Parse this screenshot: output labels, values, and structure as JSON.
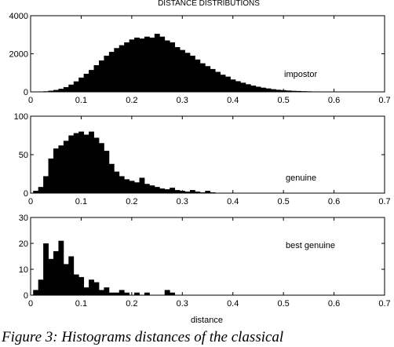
{
  "figure": {
    "title": "DISTANCE DISTRIBUTIONS",
    "caption": "Figure 3: Histograms distances of the classical"
  },
  "chart_data": [
    {
      "type": "bar",
      "title": "DISTANCE DISTRIBUTIONS",
      "xlabel": "",
      "ylabel": "",
      "annotation": "impostor",
      "xlim": [
        0,
        0.7
      ],
      "ylim": [
        0,
        4000
      ],
      "xticks": [
        "0",
        "0.1",
        "0.2",
        "0.3",
        "0.4",
        "0.5",
        "0.6",
        "0.7"
      ],
      "yticks": [
        "0",
        "2000",
        "4000"
      ],
      "bin_width": 0.01,
      "x": [
        0.01,
        0.02,
        0.03,
        0.04,
        0.05,
        0.06,
        0.07,
        0.08,
        0.09,
        0.1,
        0.11,
        0.12,
        0.13,
        0.14,
        0.15,
        0.16,
        0.17,
        0.18,
        0.19,
        0.2,
        0.21,
        0.22,
        0.23,
        0.24,
        0.25,
        0.26,
        0.27,
        0.28,
        0.29,
        0.3,
        0.31,
        0.32,
        0.33,
        0.34,
        0.35,
        0.36,
        0.37,
        0.38,
        0.39,
        0.4,
        0.41,
        0.42,
        0.43,
        0.44,
        0.45,
        0.46,
        0.47,
        0.48,
        0.49,
        0.5,
        0.51,
        0.52,
        0.53,
        0.54,
        0.55,
        0.56,
        0.57,
        0.58,
        0.59,
        0.6,
        0.61,
        0.62
      ],
      "values": [
        5,
        15,
        30,
        60,
        100,
        160,
        250,
        380,
        550,
        750,
        950,
        1150,
        1400,
        1650,
        1900,
        2100,
        2300,
        2450,
        2600,
        2750,
        2850,
        2800,
        2900,
        2850,
        3050,
        2900,
        2700,
        2600,
        2350,
        2200,
        2050,
        1900,
        1700,
        1500,
        1350,
        1200,
        1050,
        900,
        800,
        650,
        560,
        480,
        400,
        330,
        270,
        220,
        180,
        140,
        110,
        90,
        70,
        55,
        45,
        35,
        28,
        22,
        18,
        14,
        10,
        8,
        5,
        3
      ],
      "grid": false,
      "legend": "none"
    },
    {
      "type": "bar",
      "title": "",
      "xlabel": "",
      "ylabel": "",
      "annotation": "genuine",
      "xlim": [
        0,
        0.7
      ],
      "ylim": [
        0,
        100
      ],
      "xticks": [
        "0",
        "0.1",
        "0.2",
        "0.3",
        "0.4",
        "0.5",
        "0.6",
        "0.7"
      ],
      "yticks": [
        "0",
        "50",
        "100"
      ],
      "bin_width": 0.01,
      "x": [
        0.01,
        0.02,
        0.03,
        0.04,
        0.05,
        0.06,
        0.07,
        0.08,
        0.09,
        0.1,
        0.11,
        0.12,
        0.13,
        0.14,
        0.15,
        0.16,
        0.17,
        0.18,
        0.19,
        0.2,
        0.21,
        0.22,
        0.23,
        0.24,
        0.25,
        0.26,
        0.27,
        0.28,
        0.29,
        0.3,
        0.31,
        0.32,
        0.33,
        0.34,
        0.35,
        0.36
      ],
      "values": [
        3,
        8,
        22,
        45,
        58,
        62,
        68,
        75,
        78,
        80,
        76,
        80,
        72,
        65,
        55,
        38,
        28,
        22,
        18,
        16,
        14,
        20,
        12,
        10,
        8,
        6,
        5,
        7,
        4,
        3,
        2,
        4,
        2,
        1,
        3,
        1
      ],
      "grid": false,
      "legend": "none"
    },
    {
      "type": "bar",
      "title": "",
      "xlabel": "distance",
      "ylabel": "",
      "annotation": "best genuine",
      "xlim": [
        0,
        0.7
      ],
      "ylim": [
        0,
        30
      ],
      "xticks": [
        "0",
        "0.1",
        "0.2",
        "0.3",
        "0.4",
        "0.5",
        "0.6",
        "0.7"
      ],
      "yticks": [
        "0",
        "10",
        "20",
        "30"
      ],
      "bin_width": 0.01,
      "x": [
        0.01,
        0.02,
        0.03,
        0.04,
        0.05,
        0.06,
        0.07,
        0.08,
        0.09,
        0.1,
        0.11,
        0.12,
        0.13,
        0.14,
        0.15,
        0.16,
        0.17,
        0.18,
        0.19,
        0.2,
        0.21,
        0.22,
        0.23,
        0.24,
        0.25,
        0.26,
        0.27,
        0.28
      ],
      "values": [
        2,
        6,
        20,
        14,
        17,
        21,
        12,
        15,
        8,
        7,
        3,
        6,
        5,
        2,
        3,
        1,
        1,
        2,
        1,
        0,
        1,
        0,
        1,
        0,
        0,
        0,
        2,
        1
      ],
      "grid": false,
      "legend": "none"
    }
  ]
}
